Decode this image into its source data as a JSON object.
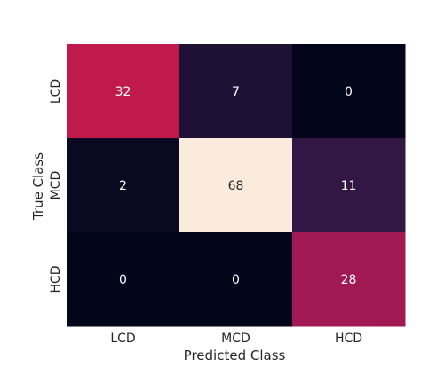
{
  "chart_data": {
    "type": "heatmap",
    "title": "",
    "xlabel": "Predicted Class",
    "ylabel": "True Class",
    "x_categories": [
      "LCD",
      "MCD",
      "HCD"
    ],
    "y_categories": [
      "LCD",
      "MCD",
      "HCD"
    ],
    "values": [
      [
        32,
        7,
        0
      ],
      [
        2,
        68,
        11
      ],
      [
        0,
        0,
        28
      ]
    ],
    "colorbar": false,
    "colormap": "rocket",
    "value_range": [
      0,
      68
    ]
  }
}
